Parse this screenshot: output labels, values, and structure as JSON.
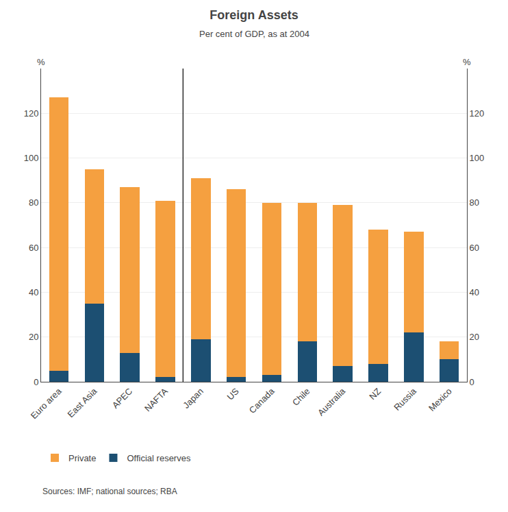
{
  "chart_data": {
    "type": "bar",
    "stacked": true,
    "title": "Foreign Assets",
    "subtitle": "Per cent of GDP, as at 2004",
    "source": "Sources: IMF; national sources; RBA",
    "ylabel": "%",
    "y2label": "%",
    "categories": [
      "Euro area",
      "East Asia",
      "APEC",
      "NAFTA",
      "Japan",
      "US",
      "Canada",
      "Chile",
      "Australia",
      "NZ",
      "Russia",
      "Mexico"
    ],
    "series": [
      {
        "name": "Official reserves",
        "color": "#1C4F72",
        "values": [
          5,
          35,
          13,
          2,
          19,
          2,
          3,
          18,
          7,
          8,
          22,
          10
        ]
      },
      {
        "name": "Private",
        "color": "#F5A040",
        "values": [
          122,
          60,
          74,
          79,
          72,
          84,
          77,
          62,
          72,
          60,
          45,
          8
        ]
      }
    ],
    "ylim": [
      0,
      140
    ],
    "yticks": [
      0,
      20,
      40,
      60,
      80,
      100,
      120
    ],
    "y2lim": [
      0,
      140
    ],
    "y2ticks": [
      0,
      20,
      40,
      60,
      80,
      100,
      120
    ],
    "grid": true,
    "legend": "bottom"
  }
}
